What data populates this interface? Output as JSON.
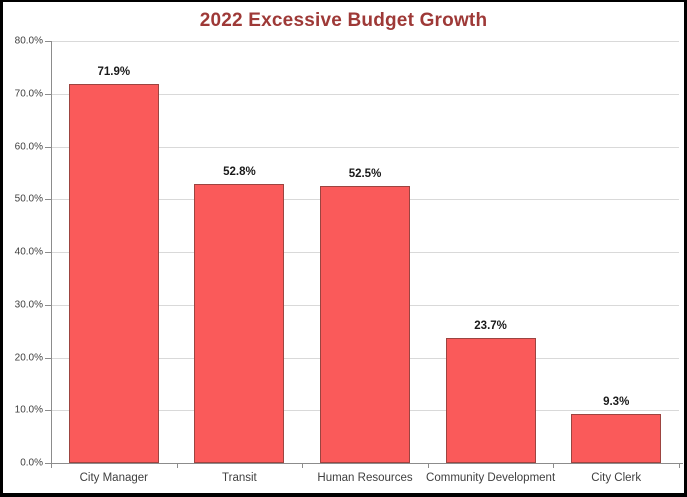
{
  "chart_data": {
    "type": "bar",
    "title": "2022 Excessive Budget Growth",
    "categories": [
      "City Manager",
      "Transit",
      "Human Resources",
      "Community Development",
      "City Clerk"
    ],
    "values": [
      71.9,
      52.8,
      52.5,
      23.7,
      9.3
    ],
    "value_labels": [
      "71.9%",
      "52.8%",
      "52.5%",
      "23.7%",
      "9.3%"
    ],
    "xlabel": "",
    "ylabel": "",
    "ylim": [
      0,
      80
    ],
    "ytick_step": 10,
    "ytick_labels": [
      "0.0%",
      "10.0%",
      "20.0%",
      "30.0%",
      "40.0%",
      "50.0%",
      "60.0%",
      "70.0%",
      "80.0%"
    ],
    "grid": true,
    "legend_position": "none",
    "colors": {
      "bar_fill": "#fa5a5a",
      "bar_border": "#9c4440",
      "title": "#9e3937",
      "gridline": "#d9d9d9",
      "axis_line": "#8c8c8c",
      "tick_label": "#404040",
      "data_label": "#1a1a1a",
      "frame_border": "#000000",
      "background": "#ffffff"
    }
  }
}
